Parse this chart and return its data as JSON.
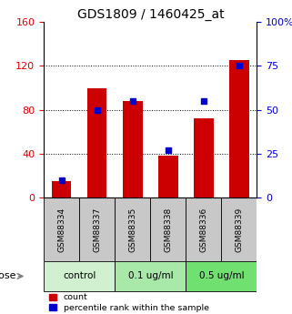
{
  "title": "GDS1809 / 1460425_at",
  "categories": [
    "GSM88334",
    "GSM88337",
    "GSM88335",
    "GSM88338",
    "GSM88336",
    "GSM88339"
  ],
  "red_values": [
    15,
    100,
    88,
    38,
    72,
    125
  ],
  "blue_values": [
    10,
    50,
    55,
    27,
    55,
    75
  ],
  "ylim_left": [
    0,
    160
  ],
  "ylim_right": [
    0,
    100
  ],
  "yticks_left": [
    0,
    40,
    80,
    120,
    160
  ],
  "yticks_right": [
    0,
    25,
    50,
    75,
    100
  ],
  "ytick_labels_right": [
    "0",
    "25",
    "50",
    "75",
    "100%"
  ],
  "left_axis_color": "#dd0000",
  "right_axis_color": "#0000cc",
  "bar_color": "#cc0000",
  "marker_color": "#0000cc",
  "marker_size": 5,
  "title_fontsize": 10,
  "dose_label": "dose",
  "legend_count": "count",
  "legend_percentile": "percentile rank within the sample",
  "tick_area_color": "#c8c8c8",
  "group_boundaries": [
    [
      0,
      2,
      "control",
      "#d0f0d0"
    ],
    [
      2,
      4,
      "0.1 ug/ml",
      "#a8e8a8"
    ],
    [
      4,
      6,
      "0.5 ug/ml",
      "#70e070"
    ]
  ],
  "hgrid_vals": [
    40,
    80,
    120
  ],
  "hgrid_color": "black",
  "hgrid_lw": 0.7
}
